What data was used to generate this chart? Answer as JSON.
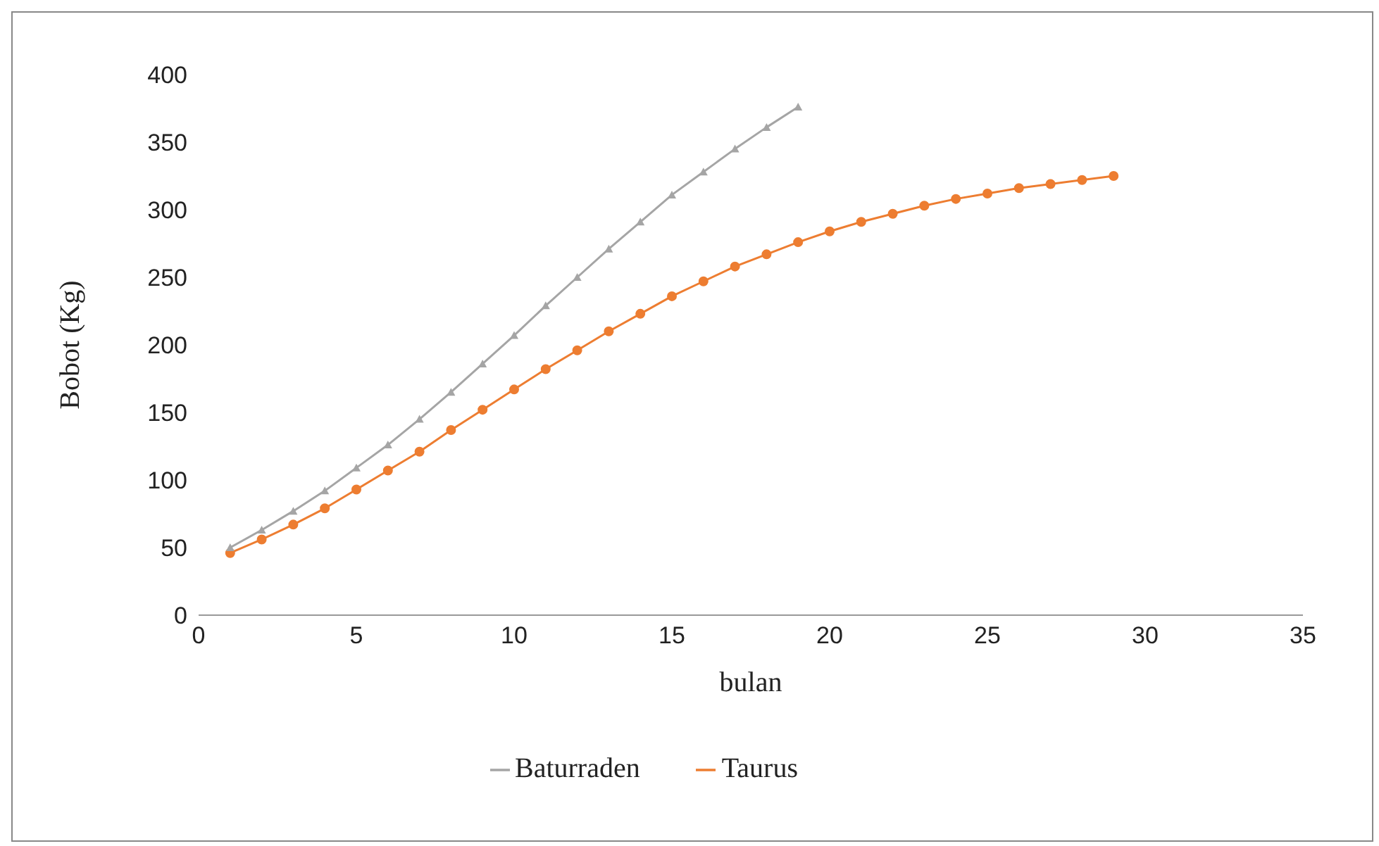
{
  "chart_data": {
    "type": "line",
    "xlabel": "bulan",
    "ylabel": "Bobot (Kg)",
    "xlim": [
      0,
      35
    ],
    "xticks": [
      0,
      5,
      10,
      15,
      20,
      25,
      30,
      35
    ],
    "ylim": [
      0,
      400
    ],
    "yticks": [
      0,
      50,
      100,
      150,
      200,
      250,
      300,
      350,
      400
    ],
    "grid": false,
    "legend": "bottom",
    "series": [
      {
        "name": "Taurus",
        "color": "#ed7d31",
        "marker": "circle",
        "x": [
          1,
          2,
          3,
          4,
          5,
          6,
          7,
          8,
          9,
          10,
          11,
          12,
          13,
          14,
          15,
          16,
          17,
          18,
          19,
          20,
          21,
          22,
          23,
          24,
          25,
          26,
          27,
          28,
          29
        ],
        "values": [
          46,
          56,
          67,
          79,
          93,
          107,
          121,
          137,
          152,
          167,
          182,
          196,
          210,
          223,
          236,
          247,
          258,
          267,
          276,
          284,
          291,
          297,
          303,
          308,
          312,
          316,
          319,
          322,
          325
        ]
      },
      {
        "name": "Baturraden",
        "color": "#a5a5a5",
        "marker": "triangle",
        "x": [
          1,
          2,
          3,
          4,
          5,
          6,
          7,
          8,
          9,
          10,
          11,
          12,
          13,
          14,
          15,
          16,
          17,
          18,
          19
        ],
        "values": [
          50,
          63,
          77,
          92,
          109,
          126,
          145,
          165,
          186,
          207,
          229,
          250,
          271,
          291,
          311,
          328,
          345,
          361,
          376
        ]
      }
    ]
  }
}
